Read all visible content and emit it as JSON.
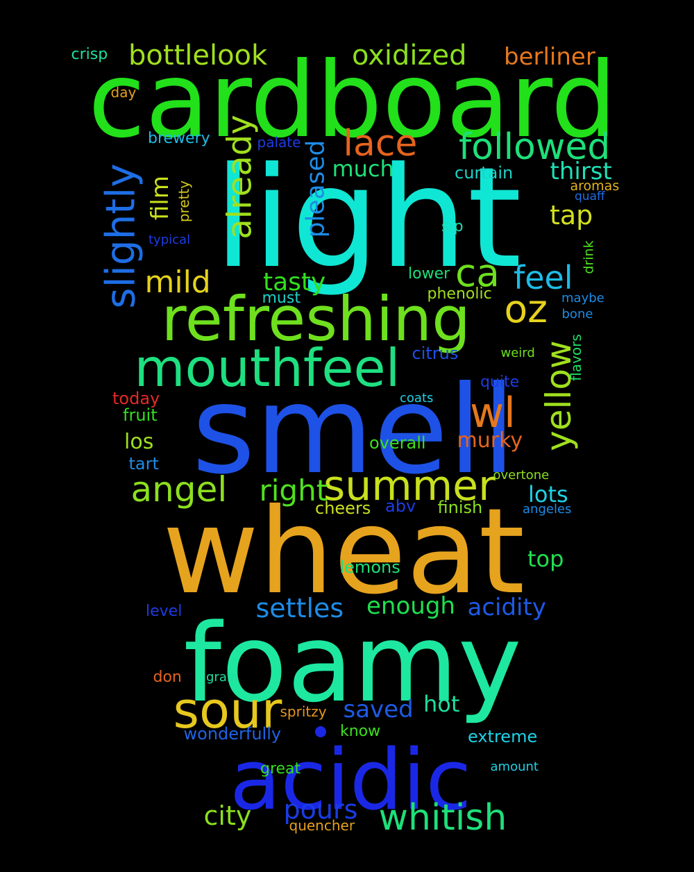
{
  "words": [
    {
      "text": "cardboard",
      "color": "#22e01a",
      "rotated": false
    },
    {
      "text": "light",
      "color": "#10e6d4",
      "rotated": false
    },
    {
      "text": "smell",
      "color": "#1e52e6",
      "rotated": false
    },
    {
      "text": "wheat",
      "color": "#e6a31e",
      "rotated": false
    },
    {
      "text": "foamy",
      "color": "#1ee8a0",
      "rotated": false
    },
    {
      "text": "acidic",
      "color": "#1a28e6",
      "rotated": false
    },
    {
      "text": "refreshing",
      "color": "#6ee01e",
      "rotated": false
    },
    {
      "text": "mouthfeel",
      "color": "#1ee080",
      "rotated": false
    },
    {
      "text": "sour",
      "color": "#e6c81e",
      "rotated": false
    },
    {
      "text": "summer",
      "color": "#c8e01e",
      "rotated": false
    },
    {
      "text": "whitish",
      "color": "#1ee07a",
      "rotated": false
    },
    {
      "text": "slightly",
      "color": "#1e6ee6",
      "rotated": true
    },
    {
      "text": "already",
      "color": "#a0e01e",
      "rotated": true
    },
    {
      "text": "followed",
      "color": "#1ee07a",
      "rotated": false
    },
    {
      "text": "lace",
      "color": "#e6641e",
      "rotated": false
    },
    {
      "text": "oxidized",
      "color": "#8ce01e",
      "rotated": false
    },
    {
      "text": "bottlelook",
      "color": "#a0e01e",
      "rotated": false
    },
    {
      "text": "berliner",
      "color": "#e6781e",
      "rotated": false
    },
    {
      "text": "wl",
      "color": "#e6781e",
      "rotated": false
    },
    {
      "text": "ca",
      "color": "#6ee01e",
      "rotated": false
    },
    {
      "text": "feel",
      "color": "#1ebce6",
      "rotated": false
    },
    {
      "text": "oz",
      "color": "#e6d21e",
      "rotated": false
    },
    {
      "text": "yellow",
      "color": "#a0e01e",
      "rotated": true
    },
    {
      "text": "angel",
      "color": "#8ce01e",
      "rotated": false
    },
    {
      "text": "right",
      "color": "#50e01e",
      "rotated": false
    },
    {
      "text": "mild",
      "color": "#e6d21e",
      "rotated": false
    },
    {
      "text": "tasty",
      "color": "#32e01e",
      "rotated": false
    },
    {
      "text": "pleased",
      "color": "#1e8ce6",
      "rotated": true
    },
    {
      "text": "film",
      "color": "#c8e01e",
      "rotated": true
    },
    {
      "text": "much",
      "color": "#1ee07a",
      "rotated": false
    },
    {
      "text": "tap",
      "color": "#d2e01e",
      "rotated": false
    },
    {
      "text": "thirst",
      "color": "#1ee0b4",
      "rotated": false
    },
    {
      "text": "curtain",
      "color": "#1ed2c8",
      "rotated": false
    },
    {
      "text": "settles",
      "color": "#1e8ce6",
      "rotated": false
    },
    {
      "text": "enough",
      "color": "#1ee050",
      "rotated": false
    },
    {
      "text": "acidity",
      "color": "#1e5ae6",
      "rotated": false
    },
    {
      "text": "pours",
      "color": "#1a3ce6",
      "rotated": false
    },
    {
      "text": "city",
      "color": "#8ce01e",
      "rotated": false
    },
    {
      "text": "saved",
      "color": "#1e5ae6",
      "rotated": false
    },
    {
      "text": "hot",
      "color": "#1ee0a0",
      "rotated": false
    },
    {
      "text": "lots",
      "color": "#1ed2e6",
      "rotated": false
    },
    {
      "text": "top",
      "color": "#1ee050",
      "rotated": false
    },
    {
      "text": "murky",
      "color": "#e6641e",
      "rotated": false
    },
    {
      "text": "los",
      "color": "#a0e01e",
      "rotated": false
    },
    {
      "text": "crisp",
      "color": "#1ee0a0",
      "rotated": false
    },
    {
      "text": "day",
      "color": "#e6a01e",
      "rotated": false
    },
    {
      "text": "brewery",
      "color": "#1ebce6",
      "rotated": false
    },
    {
      "text": "palate",
      "color": "#1e3ce6",
      "rotated": false
    },
    {
      "text": "pretty",
      "color": "#d2c81e",
      "rotated": true
    },
    {
      "text": "typical",
      "color": "#1e3ce6",
      "rotated": false
    },
    {
      "text": "aromas",
      "color": "#e6b41e",
      "rotated": false
    },
    {
      "text": "quaff",
      "color": "#1e6ee6",
      "rotated": false
    },
    {
      "text": "drink",
      "color": "#50e01e",
      "rotated": true
    },
    {
      "text": "sip",
      "color": "#1ee0b4",
      "rotated": false
    },
    {
      "text": "lower",
      "color": "#1ee07a",
      "rotated": false
    },
    {
      "text": "phenolic",
      "color": "#a0e01e",
      "rotated": false
    },
    {
      "text": "must",
      "color": "#1ed2c8",
      "rotated": false
    },
    {
      "text": "maybe",
      "color": "#1e8ce6",
      "rotated": false
    },
    {
      "text": "bone",
      "color": "#1e8ce6",
      "rotated": false
    },
    {
      "text": "citrus",
      "color": "#1e50e6",
      "rotated": false
    },
    {
      "text": "weird",
      "color": "#6ee01e",
      "rotated": false
    },
    {
      "text": "flavors",
      "color": "#1ee064",
      "rotated": true
    },
    {
      "text": "quite",
      "color": "#1e3ce6",
      "rotated": false
    },
    {
      "text": "coats",
      "color": "#1ed2e6",
      "rotated": false
    },
    {
      "text": "today",
      "color": "#e62828",
      "rotated": false
    },
    {
      "text": "fruit",
      "color": "#32e01e",
      "rotated": false
    },
    {
      "text": "overall",
      "color": "#3ce01e",
      "rotated": false
    },
    {
      "text": "tart",
      "color": "#1e8ce6",
      "rotated": false
    },
    {
      "text": "overtone",
      "color": "#8ce01e",
      "rotated": false
    },
    {
      "text": "cheers",
      "color": "#c8e01e",
      "rotated": false
    },
    {
      "text": "abv",
      "color": "#1e3ce6",
      "rotated": false
    },
    {
      "text": "finish",
      "color": "#8ce01e",
      "rotated": false
    },
    {
      "text": "angeles",
      "color": "#1e8ce6",
      "rotated": false
    },
    {
      "text": "lemons",
      "color": "#1ee07a",
      "rotated": false
    },
    {
      "text": "level",
      "color": "#1e3ce6",
      "rotated": false
    },
    {
      "text": "don",
      "color": "#e6641e",
      "rotated": false
    },
    {
      "text": "grain",
      "color": "#1ee0a0",
      "rotated": false
    },
    {
      "text": "spritzy",
      "color": "#e6961e",
      "rotated": false
    },
    {
      "text": "wonderfully",
      "color": "#1e64e6",
      "rotated": false
    },
    {
      "text": "know",
      "color": "#3ce01e",
      "rotated": false
    },
    {
      "text": "extreme",
      "color": "#1ed2e6",
      "rotated": false
    },
    {
      "text": "great",
      "color": "#32e01e",
      "rotated": false
    },
    {
      "text": "amount",
      "color": "#1ed2e6",
      "rotated": false
    },
    {
      "text": "quencher",
      "color": "#e6a01e",
      "rotated": false
    }
  ],
  "dot_color": "#1a28e6"
}
